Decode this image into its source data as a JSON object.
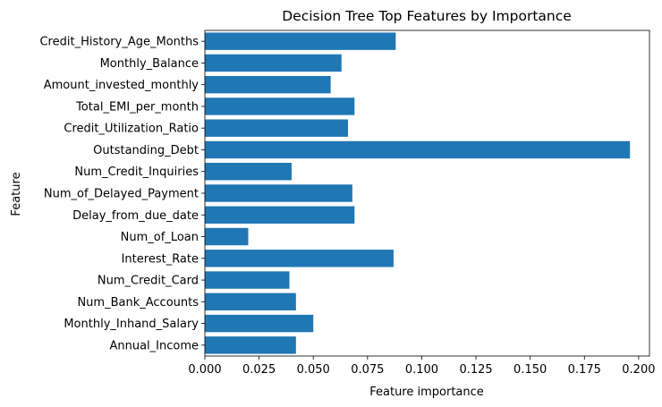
{
  "chart_data": {
    "type": "bar",
    "orientation": "horizontal",
    "title": "Decision Tree Top Features by Importance",
    "xlabel": "Feature importance",
    "ylabel": "Feature",
    "xlim": [
      0,
      0.205
    ],
    "xticks": [
      0.0,
      0.025,
      0.05,
      0.075,
      0.1,
      0.125,
      0.15,
      0.175,
      0.2
    ],
    "xtick_labels": [
      "0.000",
      "0.025",
      "0.050",
      "0.075",
      "0.100",
      "0.125",
      "0.150",
      "0.175",
      "0.200"
    ],
    "grid": false,
    "bar_color": "#1f77b4",
    "categories": [
      "Annual_Income",
      "Monthly_Inhand_Salary",
      "Num_Bank_Accounts",
      "Num_Credit_Card",
      "Interest_Rate",
      "Num_of_Loan",
      "Delay_from_due_date",
      "Num_of_Delayed_Payment",
      "Num_Credit_Inquiries",
      "Outstanding_Debt",
      "Credit_Utilization_Ratio",
      "Total_EMI_per_month",
      "Amount_invested_monthly",
      "Monthly_Balance",
      "Credit_History_Age_Months"
    ],
    "values": [
      0.042,
      0.05,
      0.042,
      0.039,
      0.087,
      0.02,
      0.069,
      0.068,
      0.04,
      0.196,
      0.066,
      0.069,
      0.058,
      0.063,
      0.088
    ]
  }
}
